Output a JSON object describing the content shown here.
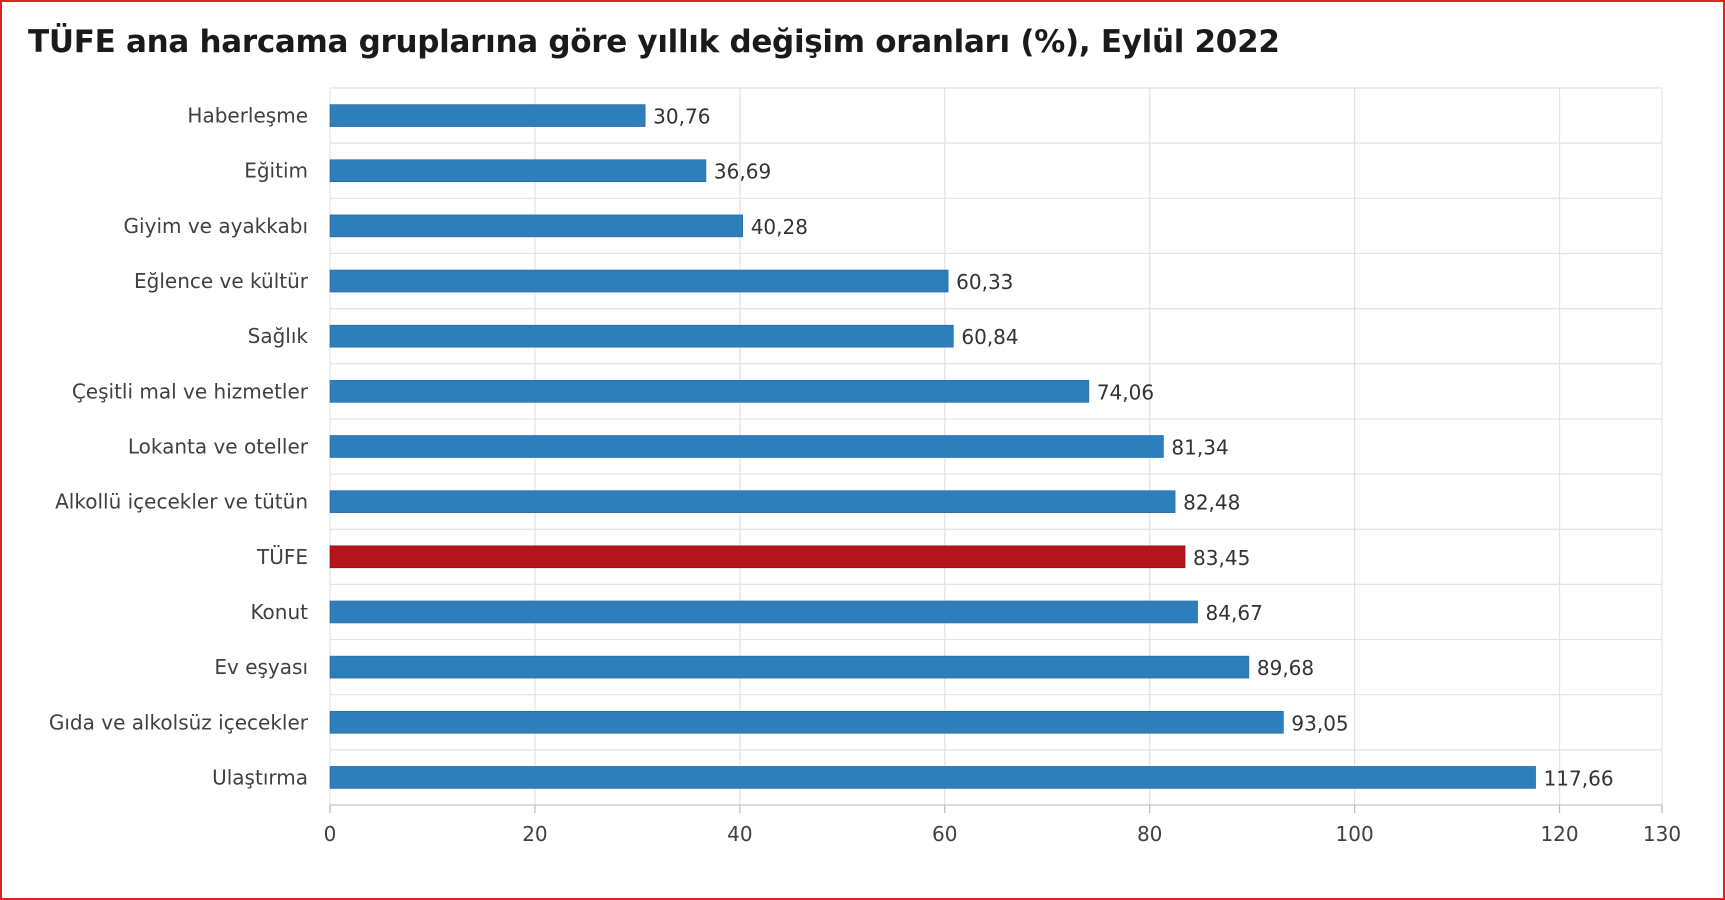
{
  "chart_data": {
    "type": "bar",
    "orientation": "horizontal",
    "title": "TÜFE ana harcama gruplarına göre yıllık değişim oranları (%), Eylül 2022",
    "categories": [
      "Haberleşme",
      "Eğitim",
      "Giyim ve ayakkabı",
      "Eğlence ve kültür",
      "Sağlık",
      "Çeşitli mal ve hizmetler",
      "Lokanta ve oteller",
      "Alkollü içecekler ve tütün",
      "TÜFE",
      "Konut",
      "Ev eşyası",
      "Gıda ve alkolsüz içecekler",
      "Ulaştırma"
    ],
    "values": [
      30.76,
      36.69,
      40.28,
      60.33,
      60.84,
      74.06,
      81.34,
      82.48,
      83.45,
      84.67,
      89.68,
      93.05,
      117.66
    ],
    "value_labels": [
      "30,76",
      "36,69",
      "40,28",
      "60,33",
      "60,84",
      "74,06",
      "81,34",
      "82,48",
      "83,45",
      "84,67",
      "89,68",
      "93,05",
      "117,66"
    ],
    "highlight_category": "TÜFE",
    "xlim": [
      0,
      130
    ],
    "xticks": [
      0,
      20,
      40,
      60,
      80,
      100,
      120,
      130
    ],
    "grid": true,
    "legend": "none",
    "colors": {
      "bar": "#2f7ebc",
      "highlight": "#b3151b",
      "grid": "#e2e2e2",
      "border": "#d9261c"
    }
  }
}
